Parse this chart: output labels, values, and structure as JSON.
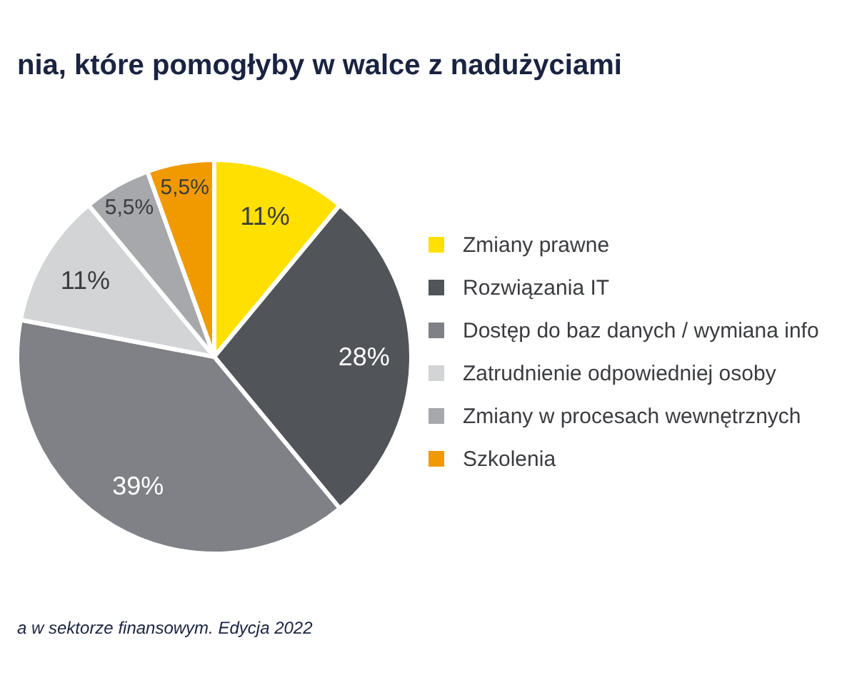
{
  "chart_data": {
    "type": "pie",
    "title": "nia, które pomogłyby w walce z nadużyciami",
    "categories": [
      "Zmiany prawne",
      "Rozwiązania IT",
      "Dostęp do baz danych / wymiana info",
      "Zatrudnienie odpowiedniej osoby",
      "Zmiany w procesach wewnętrznych",
      "Szkolenia"
    ],
    "values": [
      11,
      28,
      39,
      11,
      5.5,
      5.5
    ],
    "colors": [
      "#ffe000",
      "#515459",
      "#7f8186",
      "#d2d4d6",
      "#a6a8ac",
      "#f09a00"
    ],
    "value_labels": [
      "11%",
      "28%",
      "39%",
      "11%",
      "5,5%",
      "5,5%"
    ],
    "legend": "right",
    "annotations": [
      "a w sektorze finansowym. Edycja 2022"
    ]
  }
}
